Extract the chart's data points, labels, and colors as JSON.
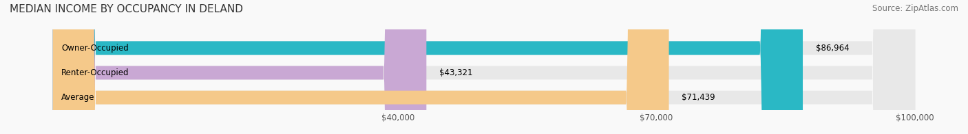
{
  "title": "MEDIAN INCOME BY OCCUPANCY IN DELAND",
  "source": "Source: ZipAtlas.com",
  "categories": [
    "Owner-Occupied",
    "Renter-Occupied",
    "Average"
  ],
  "values": [
    86964,
    43321,
    71439
  ],
  "labels": [
    "$86,964",
    "$43,321",
    "$71,439"
  ],
  "bar_colors": [
    "#2ab8c5",
    "#c9a8d4",
    "#f5c98a"
  ],
  "bar_bg_color": "#e8e8e8",
  "xlim": [
    0,
    100000
  ],
  "xticks": [
    40000,
    70000,
    100000
  ],
  "xticklabels": [
    "$40,000",
    "$70,000",
    "$100,000"
  ],
  "title_fontsize": 11,
  "source_fontsize": 8.5,
  "label_fontsize": 8.5,
  "tick_fontsize": 8.5,
  "bar_height": 0.55,
  "background_color": "#f9f9f9"
}
